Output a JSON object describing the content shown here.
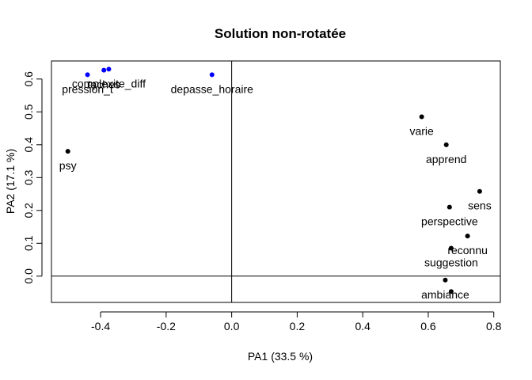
{
  "chart_data": {
    "type": "scatter",
    "title": "Solution non-rotatée",
    "xlabel": "PA1 (33.5 %)",
    "ylabel": "PA2 (17.1 %)",
    "xlim": [
      -0.55,
      0.82
    ],
    "ylim": [
      -0.08,
      0.655
    ],
    "x_ticks": [
      -0.4,
      -0.2,
      0.0,
      0.2,
      0.4,
      0.6,
      0.8
    ],
    "x_tick_labels": [
      "-0.4",
      "-0.2",
      "0.0",
      "0.2",
      "0.4",
      "0.6",
      "0.8"
    ],
    "y_ticks": [
      0.0,
      0.1,
      0.2,
      0.3,
      0.4,
      0.5,
      0.6
    ],
    "y_tick_labels": [
      "0.0",
      "0.1",
      "0.2",
      "0.3",
      "0.4",
      "0.5",
      "0.6"
    ],
    "reference_lines": {
      "x": 0,
      "y": 0
    },
    "grid": false,
    "colors": {
      "group_1": "#000000",
      "group_2": "#0000ff"
    },
    "points": [
      {
        "label": "psy",
        "x": -0.5,
        "y": 0.38,
        "group": "group_1"
      },
      {
        "label": "pression_t",
        "x": -0.44,
        "y": 0.613,
        "group": "group_2"
      },
      {
        "label": "taches",
        "x": -0.39,
        "y": 0.627,
        "group": "group_2"
      },
      {
        "label": "complexite_diff",
        "x": -0.375,
        "y": 0.63,
        "group": "group_2"
      },
      {
        "label": "depasse_horaire",
        "x": -0.06,
        "y": 0.613,
        "group": "group_2"
      },
      {
        "label": "varie",
        "x": 0.58,
        "y": 0.485,
        "group": "group_1"
      },
      {
        "label": "apprend",
        "x": 0.655,
        "y": 0.4,
        "group": "group_1"
      },
      {
        "label": "sens",
        "x": 0.757,
        "y": 0.258,
        "group": "group_1"
      },
      {
        "label": "perspective",
        "x": 0.665,
        "y": 0.21,
        "group": "group_1"
      },
      {
        "label": "reconnu",
        "x": 0.72,
        "y": 0.122,
        "group": "group_1"
      },
      {
        "label": "suggestion",
        "x": 0.67,
        "y": 0.085,
        "group": "group_1"
      },
      {
        "label": "ambiance",
        "x": 0.652,
        "y": -0.012,
        "group": "group_1"
      },
      {
        "label": "",
        "x": 0.67,
        "y": -0.047,
        "group": "group_1"
      }
    ]
  }
}
